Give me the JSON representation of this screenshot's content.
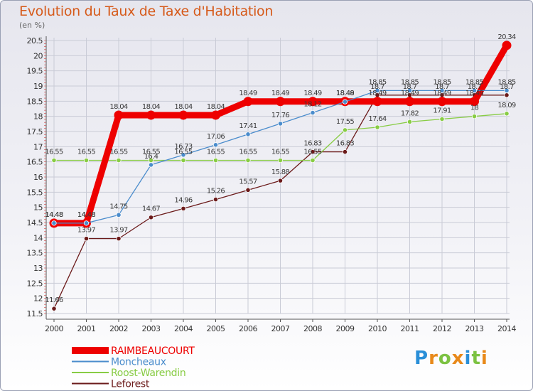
{
  "chart_data": {
    "type": "line",
    "title": "Evolution du Taux de Taxe d'Habitation",
    "subtitle": "(en %)",
    "x": [
      "2000",
      "2001",
      "2002",
      "2003",
      "2004",
      "2005",
      "2006",
      "2007",
      "2008",
      "2009",
      "2010",
      "2011",
      "2012",
      "2013",
      "2014"
    ],
    "ylim": [
      11.5,
      20.5
    ],
    "yticks": [
      "11.5",
      "12",
      "12.5",
      "13",
      "13.5",
      "14",
      "14.5",
      "15",
      "15.5",
      "16",
      "16.5",
      "17",
      "17.5",
      "18",
      "18.5",
      "19",
      "19.5",
      "20",
      "20.5"
    ],
    "grid": true,
    "legend_position": "bottom-left",
    "series": [
      {
        "name": "RAIMBEAUCOURT",
        "color": "#ee0000",
        "values": [
          14.48,
          14.48,
          18.04,
          18.04,
          18.04,
          18.04,
          18.49,
          18.49,
          18.49,
          18.49,
          18.49,
          18.49,
          18.49,
          18.49,
          20.34
        ]
      },
      {
        "name": "Moncheaux",
        "color": "#4a8ccc",
        "values": [
          14.48,
          14.48,
          14.75,
          16.4,
          16.73,
          17.06,
          17.41,
          17.76,
          18.12,
          18.48,
          18.85,
          18.85,
          18.85,
          18.85,
          18.85
        ]
      },
      {
        "name": "Roost-Warendin",
        "color": "#88cc44",
        "values": [
          16.55,
          16.55,
          16.55,
          16.55,
          16.55,
          16.55,
          16.55,
          16.55,
          16.55,
          17.55,
          17.64,
          17.82,
          17.91,
          18,
          18.09
        ]
      },
      {
        "name": "Leforest",
        "color": "#6b1a1a",
        "values": [
          11.66,
          13.97,
          13.97,
          14.67,
          14.96,
          15.26,
          15.57,
          15.88,
          16.83,
          16.83,
          18.7,
          18.7,
          18.7,
          18.7,
          18.7
        ]
      }
    ],
    "data_labels": {
      "RAIMBEAUCOURT": [
        "14.48",
        "14.48",
        "18.04",
        "18.04",
        "18.04",
        "18.04",
        "18.49",
        "18.49",
        "18.49",
        "18.49",
        "18.49",
        "18.49",
        "18.49",
        "18.49",
        "20.34"
      ],
      "Moncheaux": [
        "14.48",
        "14.48",
        "14.75",
        "16.4",
        "16.73",
        "17.06",
        "17.41",
        "17.76",
        "18.12",
        "18.48",
        "18.85",
        "18.85",
        "18.85",
        "18.85",
        "18.85"
      ],
      "Roost-Warendin": [
        "16.55",
        "16.55",
        "16.55",
        "16.55",
        "16.55",
        "16.55",
        "16.55",
        "16.55",
        "16.55",
        "17.55",
        "17.64",
        "17.82",
        "17.91",
        "18",
        "18.09"
      ],
      "Leforest": [
        "11.66",
        "13.97",
        "13.97",
        "14.67",
        "14.96",
        "15.26",
        "15.57",
        "15.88",
        "16.83",
        "16.83",
        "18.7",
        "18.7",
        "18.7",
        "18.7",
        "18.7"
      ]
    }
  },
  "branding": {
    "logo_text": "Proxiti",
    "colors": [
      "#2a8fd8",
      "#e8891a",
      "#7cc242"
    ]
  }
}
